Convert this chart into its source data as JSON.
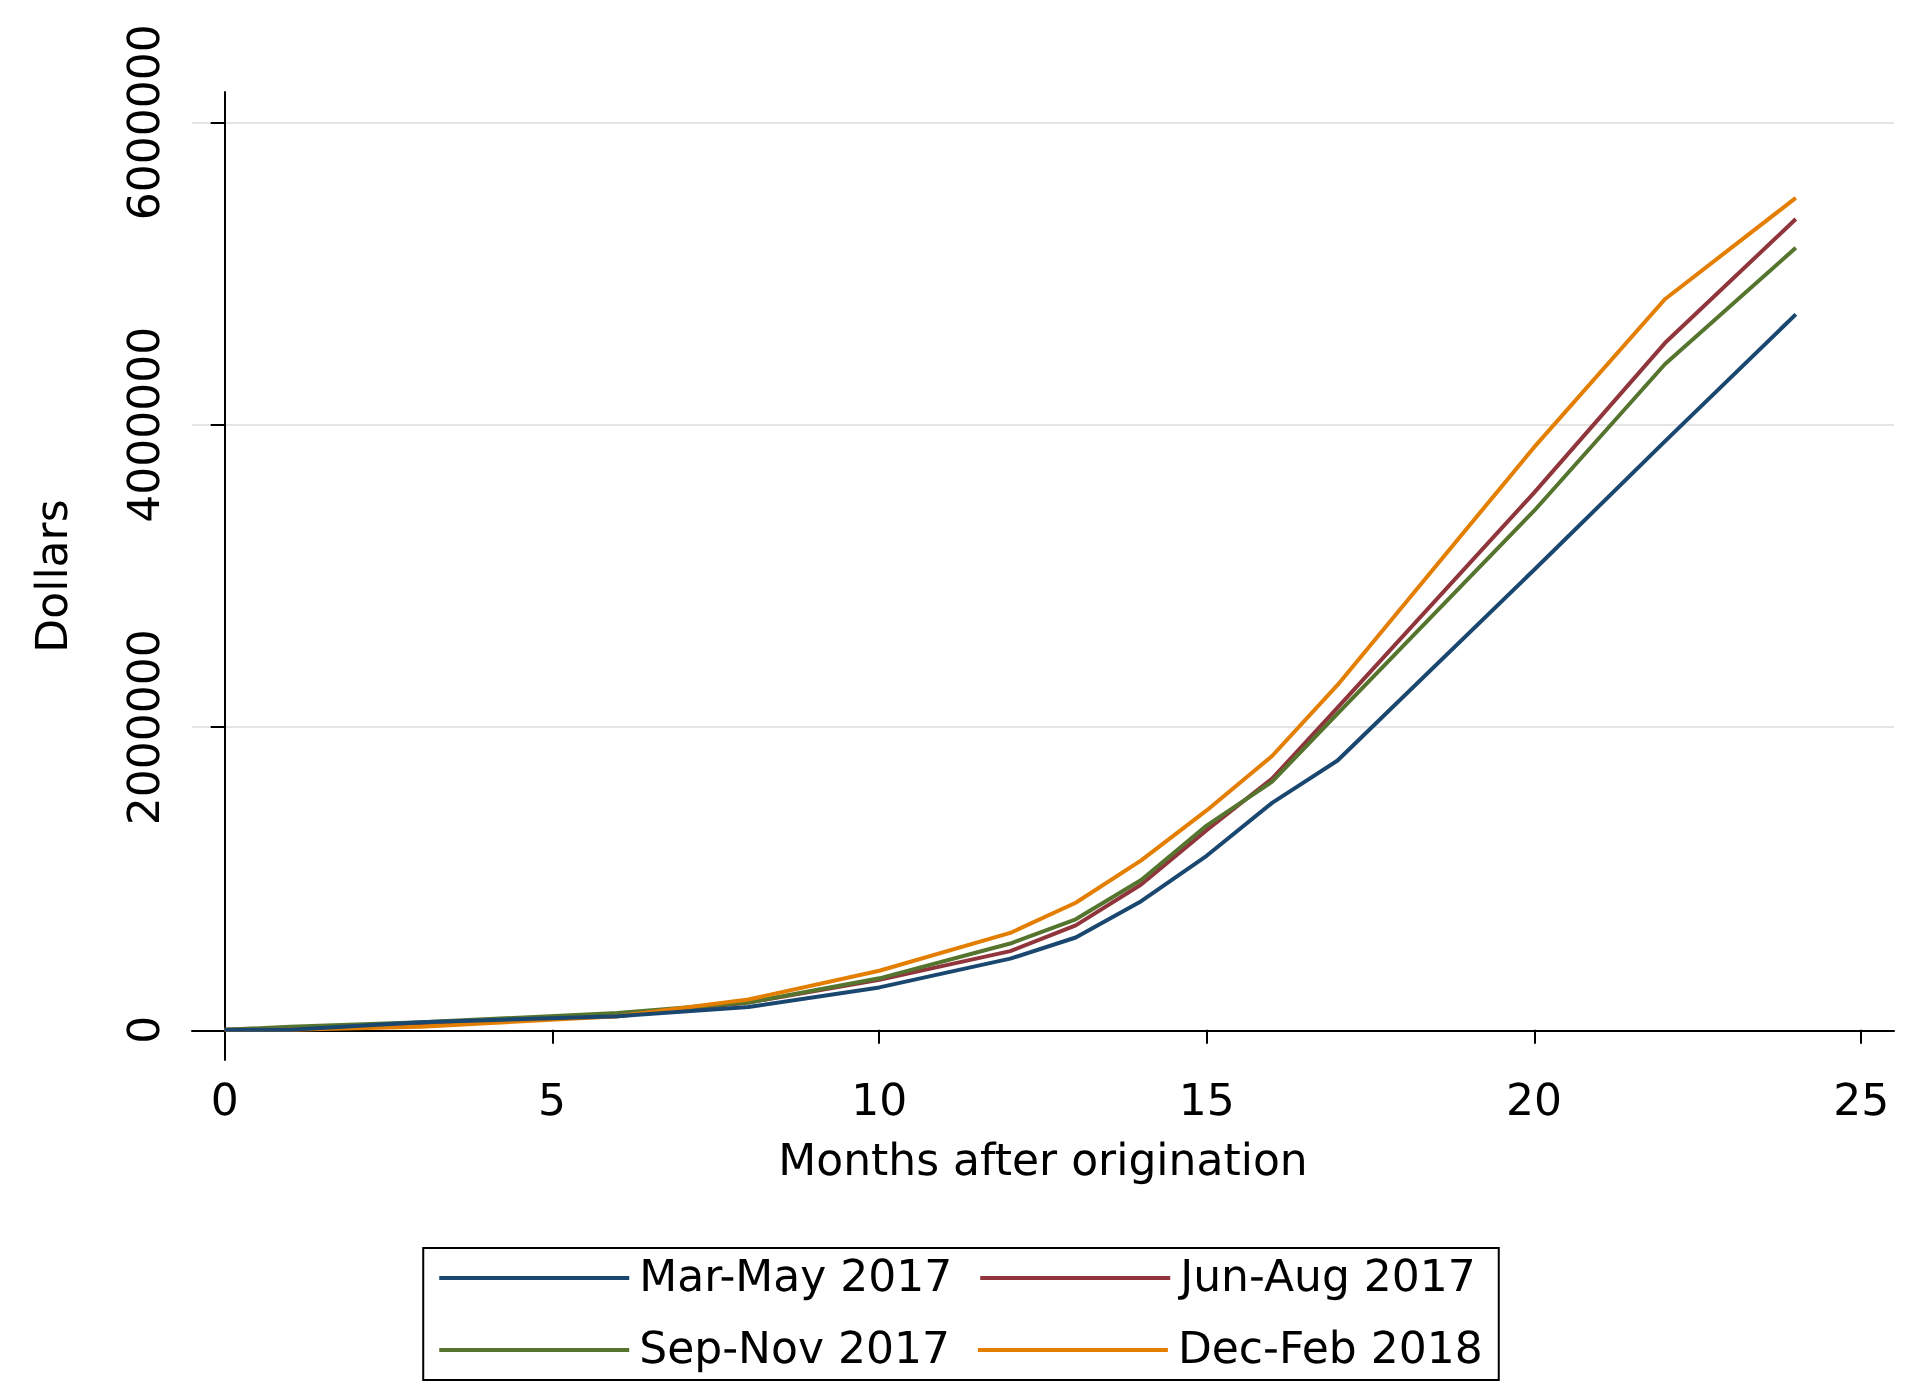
{
  "chart_data": {
    "type": "line",
    "xlabel": "Months after origination",
    "ylabel": "Dollars",
    "x": [
      0,
      1,
      3,
      6,
      8,
      10,
      12,
      13,
      14,
      15,
      16,
      17,
      20,
      22,
      24
    ],
    "xlim": [
      -0.5,
      25.5
    ],
    "xticks": [
      0,
      5,
      10,
      15,
      20,
      25
    ],
    "ylim": [
      -200000,
      6200000
    ],
    "yticks": [
      0,
      2000000,
      4000000,
      6000000
    ],
    "grid": "y",
    "legend": "bottom",
    "line_style": "solid",
    "marker": "none",
    "series": [
      {
        "name": "Mar-May 2017",
        "color": "#1a476f",
        "values": [
          0,
          0,
          50000,
          90000,
          150000,
          280000,
          470000,
          610000,
          850000,
          1150000,
          1500000,
          1780000,
          3040000,
          3890000,
          4730000
        ]
      },
      {
        "name": "Jun-Aug 2017",
        "color": "#90353b",
        "values": [
          0,
          0,
          40000,
          90000,
          180000,
          330000,
          520000,
          690000,
          960000,
          1320000,
          1660000,
          2130000,
          3550000,
          4540000,
          5360000
        ]
      },
      {
        "name": "Sep-Nov 2017",
        "color": "#55752f",
        "values": [
          0,
          20000,
          50000,
          110000,
          180000,
          340000,
          570000,
          730000,
          990000,
          1350000,
          1640000,
          2090000,
          3430000,
          4400000,
          5170000
        ]
      },
      {
        "name": "Dec-Feb 2018",
        "color": "#e37e00",
        "values": [
          0,
          0,
          20000,
          90000,
          200000,
          390000,
          640000,
          840000,
          1120000,
          1450000,
          1810000,
          2280000,
          3850000,
          4830000,
          5500000
        ]
      }
    ]
  }
}
